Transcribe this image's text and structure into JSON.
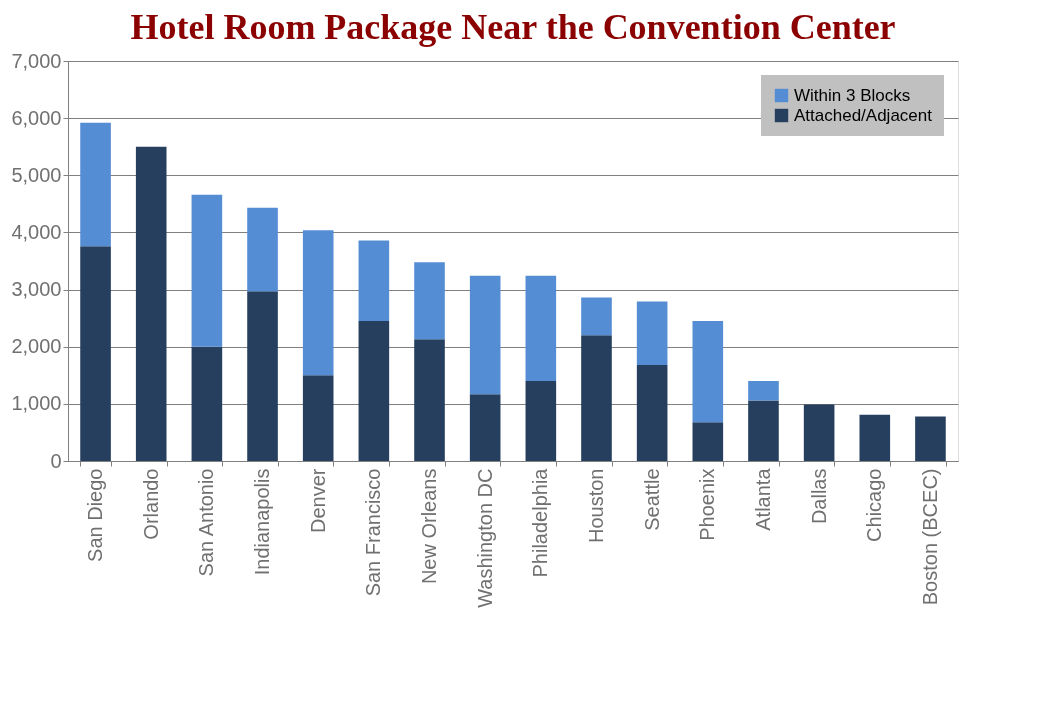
{
  "chart_data": {
    "type": "bar",
    "title": "Hotel Room Package Near the Convention Center",
    "categories": [
      "San Diego",
      "Orlando",
      "San Antonio",
      "Indianapolis",
      "Denver",
      "San Francisco",
      "New Orleans",
      "Washington DC",
      "Philadelphia",
      "Houston",
      "Seattle",
      "Phoenix",
      "Atlanta",
      "Dallas",
      "Chicago",
      "Boston (BCEC)"
    ],
    "stacked": true,
    "series": [
      {
        "name": "Attached/Adjacent",
        "color": "#263f5f",
        "values": [
          3760,
          5500,
          2000,
          2970,
          1500,
          2450,
          2130,
          1170,
          1400,
          2200,
          1680,
          680,
          1060,
          990,
          810,
          780
        ]
      },
      {
        "name": "Within 3 Blocks",
        "color": "#548dd4",
        "values": [
          2160,
          null,
          2660,
          1460,
          2540,
          1410,
          1350,
          2070,
          1840,
          660,
          1110,
          1770,
          340,
          null,
          null,
          null
        ]
      }
    ],
    "ylim": [
      0,
      7000
    ],
    "yticks": [
      {
        "value": 0,
        "label": "0"
      },
      {
        "value": 1000,
        "label": "1,000"
      },
      {
        "value": 2000,
        "label": "2,000"
      },
      {
        "value": 3000,
        "label": "3,000"
      },
      {
        "value": 4000,
        "label": "4,000"
      },
      {
        "value": 5000,
        "label": "5,000"
      },
      {
        "value": 6000,
        "label": "6,000"
      },
      {
        "value": 7000,
        "label": "7,000"
      }
    ],
    "grid": "y",
    "legend": "top right"
  }
}
